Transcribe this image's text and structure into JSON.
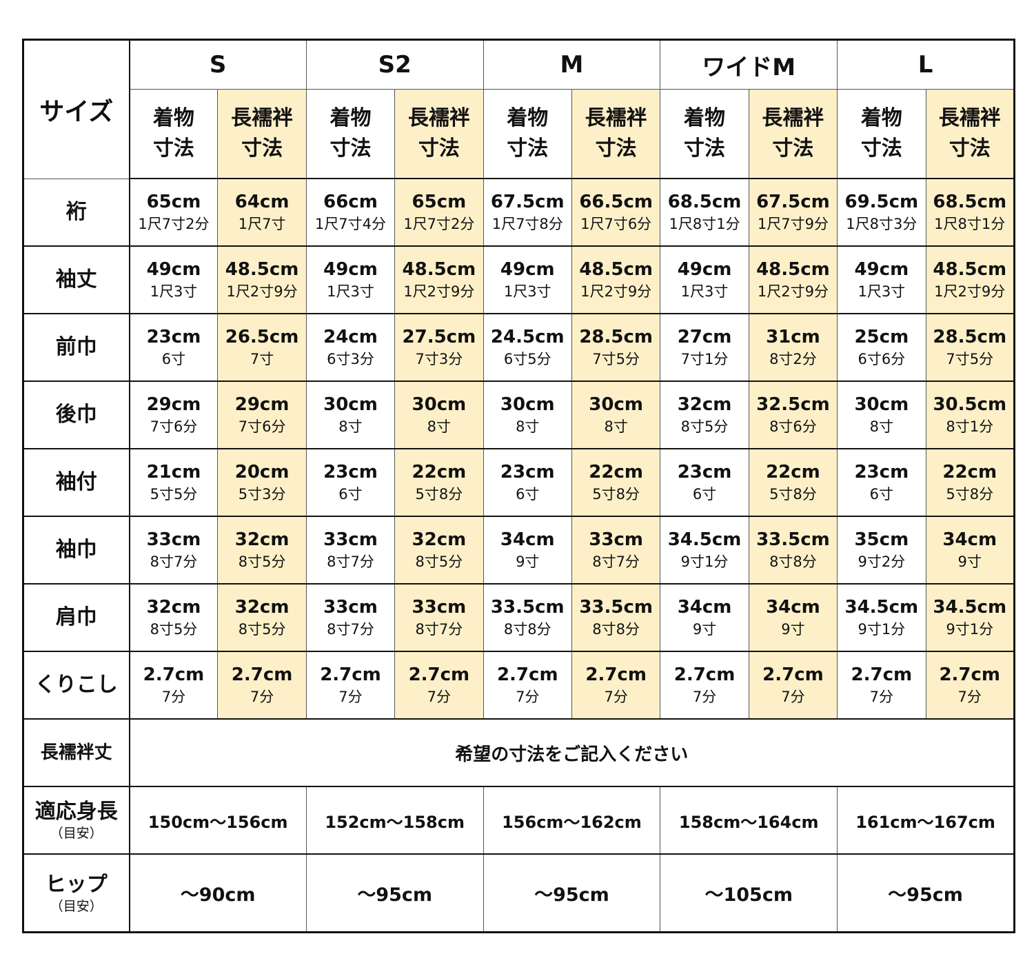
{
  "corner_label": "サイズ",
  "sizes": [
    "S",
    "S2",
    "M",
    "ワイドM",
    "L"
  ],
  "sub_headers": {
    "kimono": [
      "着物",
      "寸法"
    ],
    "nagajuban": [
      "長襦袢",
      "寸法"
    ]
  },
  "highlight_color": "#fdf0c8",
  "rows": [
    {
      "label": "裄",
      "cells": [
        [
          "65cm",
          "1尺7寸2分"
        ],
        [
          "64cm",
          "1尺7寸"
        ],
        [
          "66cm",
          "1尺7寸4分"
        ],
        [
          "65cm",
          "1尺7寸2分"
        ],
        [
          "67.5cm",
          "1尺7寸8分"
        ],
        [
          "66.5cm",
          "1尺7寸6分"
        ],
        [
          "68.5cm",
          "1尺8寸1分"
        ],
        [
          "67.5cm",
          "1尺7寸9分"
        ],
        [
          "69.5cm",
          "1尺8寸3分"
        ],
        [
          "68.5cm",
          "1尺8寸1分"
        ]
      ]
    },
    {
      "label": "袖丈",
      "cells": [
        [
          "49cm",
          "1尺3寸"
        ],
        [
          "48.5cm",
          "1尺2寸9分"
        ],
        [
          "49cm",
          "1尺3寸"
        ],
        [
          "48.5cm",
          "1尺2寸9分"
        ],
        [
          "49cm",
          "1尺3寸"
        ],
        [
          "48.5cm",
          "1尺2寸9分"
        ],
        [
          "49cm",
          "1尺3寸"
        ],
        [
          "48.5cm",
          "1尺2寸9分"
        ],
        [
          "49cm",
          "1尺3寸"
        ],
        [
          "48.5cm",
          "1尺2寸9分"
        ]
      ]
    },
    {
      "label": "前巾",
      "cells": [
        [
          "23cm",
          "6寸"
        ],
        [
          "26.5cm",
          "7寸"
        ],
        [
          "24cm",
          "6寸3分"
        ],
        [
          "27.5cm",
          "7寸3分"
        ],
        [
          "24.5cm",
          "6寸5分"
        ],
        [
          "28.5cm",
          "7寸5分"
        ],
        [
          "27cm",
          "7寸1分"
        ],
        [
          "31cm",
          "8寸2分"
        ],
        [
          "25cm",
          "6寸6分"
        ],
        [
          "28.5cm",
          "7寸5分"
        ]
      ]
    },
    {
      "label": "後巾",
      "cells": [
        [
          "29cm",
          "7寸6分"
        ],
        [
          "29cm",
          "7寸6分"
        ],
        [
          "30cm",
          "8寸"
        ],
        [
          "30cm",
          "8寸"
        ],
        [
          "30cm",
          "8寸"
        ],
        [
          "30cm",
          "8寸"
        ],
        [
          "32cm",
          "8寸5分"
        ],
        [
          "32.5cm",
          "8寸6分"
        ],
        [
          "30cm",
          "8寸"
        ],
        [
          "30.5cm",
          "8寸1分"
        ]
      ]
    },
    {
      "label": "袖付",
      "cells": [
        [
          "21cm",
          "5寸5分"
        ],
        [
          "20cm",
          "5寸3分"
        ],
        [
          "23cm",
          "6寸"
        ],
        [
          "22cm",
          "5寸8分"
        ],
        [
          "23cm",
          "6寸"
        ],
        [
          "22cm",
          "5寸8分"
        ],
        [
          "23cm",
          "6寸"
        ],
        [
          "22cm",
          "5寸8分"
        ],
        [
          "23cm",
          "6寸"
        ],
        [
          "22cm",
          "5寸8分"
        ]
      ]
    },
    {
      "label": "袖巾",
      "cells": [
        [
          "33cm",
          "8寸7分"
        ],
        [
          "32cm",
          "8寸5分"
        ],
        [
          "33cm",
          "8寸7分"
        ],
        [
          "32cm",
          "8寸5分"
        ],
        [
          "34cm",
          "9寸"
        ],
        [
          "33cm",
          "8寸7分"
        ],
        [
          "34.5cm",
          "9寸1分"
        ],
        [
          "33.5cm",
          "8寸8分"
        ],
        [
          "35cm",
          "9寸2分"
        ],
        [
          "34cm",
          "9寸"
        ]
      ]
    },
    {
      "label": "肩巾",
      "cells": [
        [
          "32cm",
          "8寸5分"
        ],
        [
          "32cm",
          "8寸5分"
        ],
        [
          "33cm",
          "8寸7分"
        ],
        [
          "33cm",
          "8寸7分"
        ],
        [
          "33.5cm",
          "8寸8分"
        ],
        [
          "33.5cm",
          "8寸8分"
        ],
        [
          "34cm",
          "9寸"
        ],
        [
          "34cm",
          "9寸"
        ],
        [
          "34.5cm",
          "9寸1分"
        ],
        [
          "34.5cm",
          "9寸1分"
        ]
      ]
    },
    {
      "label": "くりこし",
      "cells": [
        [
          "2.7cm",
          "7分"
        ],
        [
          "2.7cm",
          "7分"
        ],
        [
          "2.7cm",
          "7分"
        ],
        [
          "2.7cm",
          "7分"
        ],
        [
          "2.7cm",
          "7分"
        ],
        [
          "2.7cm",
          "7分"
        ],
        [
          "2.7cm",
          "7分"
        ],
        [
          "2.7cm",
          "7分"
        ],
        [
          "2.7cm",
          "7分"
        ],
        [
          "2.7cm",
          "7分"
        ]
      ]
    }
  ],
  "nagajuban_length": {
    "label": "長襦袢丈",
    "value": "希望の寸法をご記入ください"
  },
  "height": {
    "label": "適応身長",
    "note": "（目安）",
    "values": [
      "150cm〜156cm",
      "152cm〜158cm",
      "156cm〜162cm",
      "158cm〜164cm",
      "161cm〜167cm"
    ]
  },
  "hip": {
    "label": "ヒップ",
    "note": "（目安）",
    "values": [
      "〜90cm",
      "〜95cm",
      "〜95cm",
      "〜105cm",
      "〜95cm"
    ]
  }
}
